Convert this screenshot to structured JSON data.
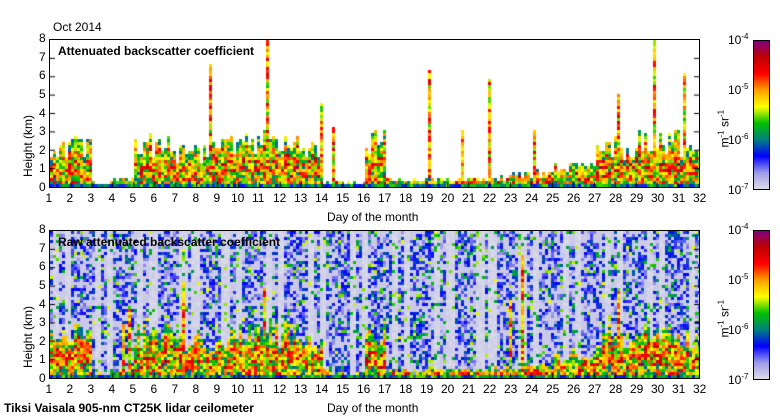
{
  "header": {
    "date": "Oct 2014"
  },
  "footer": {
    "instrument": "Tiksi Vaisala 905-nm CT25K lidar ceilometer"
  },
  "colorbar": {
    "unit": "m-1 sr-1",
    "ticks": [
      "10-7",
      "10-6",
      "10-5",
      "10-4"
    ],
    "colors": [
      "#dcdce8",
      "#9a9ae8",
      "#0000ff",
      "#008080",
      "#00c000",
      "#ffff00",
      "#ffa000",
      "#ff0000",
      "#c00000",
      "#800080"
    ]
  },
  "chart_data": [
    {
      "type": "heatmap",
      "title": "Attenuated backscatter coefficient",
      "xlabel": "Day of the month",
      "ylabel": "Height (km)",
      "xlim": [
        1,
        32
      ],
      "ylim": [
        0,
        8
      ],
      "xticks": [
        "1",
        "2",
        "3",
        "4",
        "5",
        "6",
        "7",
        "8",
        "9",
        "10",
        "11",
        "12",
        "13",
        "14",
        "15",
        "16",
        "17",
        "18",
        "19",
        "20",
        "21",
        "22",
        "23",
        "24",
        "25",
        "26",
        "27",
        "28",
        "29",
        "30",
        "31",
        "32"
      ],
      "yticks": [
        "0",
        "1",
        "2",
        "3",
        "4",
        "5",
        "6",
        "7",
        "8"
      ],
      "color_scale": "log",
      "clim": [
        1e-07,
        0.0001
      ],
      "approx_layer_top_km_by_day": [
        2.3,
        2.4,
        0.3,
        0.5,
        2.5,
        2.5,
        2.0,
        2.0,
        2.2,
        2.5,
        2.5,
        2.5,
        2.0,
        0.4,
        0.3,
        2.5,
        0.5,
        0.4,
        0.5,
        0.5,
        0.5,
        0.6,
        0.7,
        0.8,
        1.2,
        1.2,
        2.3,
        2.0,
        2.5,
        2.5,
        2.2
      ]
    },
    {
      "type": "heatmap",
      "title": "Raw attenuated backscatter coefficient",
      "xlabel": "Day of the month",
      "ylabel": "Height (km)",
      "xlim": [
        1,
        32
      ],
      "ylim": [
        0,
        8
      ],
      "xticks": [
        "1",
        "2",
        "3",
        "4",
        "5",
        "6",
        "7",
        "8",
        "9",
        "10",
        "11",
        "12",
        "13",
        "14",
        "15",
        "16",
        "17",
        "18",
        "19",
        "20",
        "21",
        "22",
        "23",
        "24",
        "25",
        "26",
        "27",
        "28",
        "29",
        "30",
        "31",
        "32"
      ],
      "yticks": [
        "0",
        "1",
        "2",
        "3",
        "4",
        "5",
        "6",
        "7",
        "8"
      ],
      "color_scale": "log",
      "clim": [
        1e-07,
        0.0001
      ]
    }
  ]
}
